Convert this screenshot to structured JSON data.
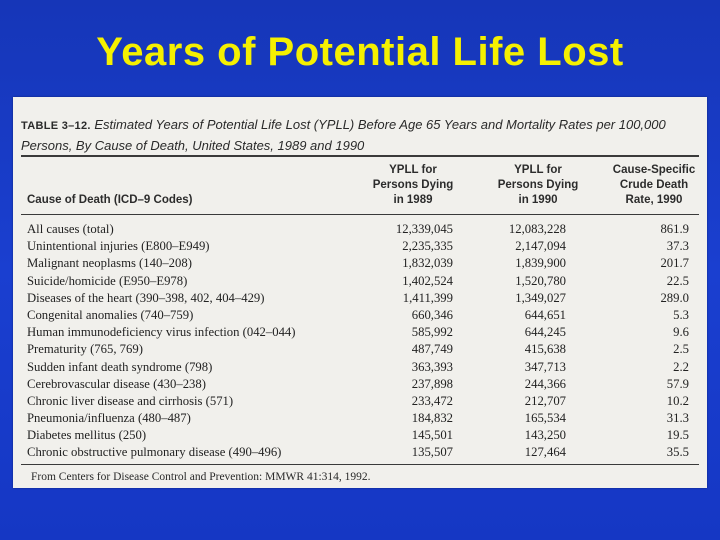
{
  "slide": {
    "title": "Years of Potential Life Lost"
  },
  "table": {
    "label": "TABLE 3–12.",
    "caption_line1": "Estimated Years of Potential Life Lost (YPLL) Before Age 65 Years and Mortality Rates per 100,000",
    "caption_line2": "Persons, By Cause of Death, United States, 1989 and 1990",
    "headers": {
      "cause": "Cause of Death (ICD–9 Codes)",
      "ypll1989": [
        "YPLL for",
        "Persons Dying",
        "in 1989"
      ],
      "ypll1990": [
        "YPLL for",
        "Persons Dying",
        "in 1990"
      ],
      "rate": [
        "Cause-Specific",
        "Crude Death",
        "Rate, 1990"
      ]
    },
    "rows": [
      {
        "cause": "All causes (total)",
        "ypll1989": "12,339,045",
        "ypll1990": "12,083,228",
        "rate": "861.9"
      },
      {
        "cause": "Unintentional injuries (E800–E949)",
        "ypll1989": "2,235,335",
        "ypll1990": "2,147,094",
        "rate": "37.3"
      },
      {
        "cause": "Malignant neoplasms (140–208)",
        "ypll1989": "1,832,039",
        "ypll1990": "1,839,900",
        "rate": "201.7"
      },
      {
        "cause": "Suicide/homicide (E950–E978)",
        "ypll1989": "1,402,524",
        "ypll1990": "1,520,780",
        "rate": "22.5"
      },
      {
        "cause": "Diseases of the heart (390–398, 402, 404–429)",
        "ypll1989": "1,411,399",
        "ypll1990": "1,349,027",
        "rate": "289.0"
      },
      {
        "cause": "Congenital anomalies (740–759)",
        "ypll1989": "660,346",
        "ypll1990": "644,651",
        "rate": "5.3"
      },
      {
        "cause": "Human immunodeficiency virus infection (042–044)",
        "ypll1989": "585,992",
        "ypll1990": "644,245",
        "rate": "9.6"
      },
      {
        "cause": "Prematurity (765, 769)",
        "ypll1989": "487,749",
        "ypll1990": "415,638",
        "rate": "2.5"
      },
      {
        "cause": "Sudden infant death syndrome (798)",
        "ypll1989": "363,393",
        "ypll1990": "347,713",
        "rate": "2.2"
      },
      {
        "cause": "Cerebrovascular disease (430–238)",
        "ypll1989": "237,898",
        "ypll1990": "244,366",
        "rate": "57.9"
      },
      {
        "cause": "Chronic liver disease and cirrhosis (571)",
        "ypll1989": "233,472",
        "ypll1990": "212,707",
        "rate": "10.2"
      },
      {
        "cause": "Pneumonia/influenza (480–487)",
        "ypll1989": "184,832",
        "ypll1990": "165,534",
        "rate": "31.3"
      },
      {
        "cause": "Diabetes mellitus (250)",
        "ypll1989": "145,501",
        "ypll1990": "143,250",
        "rate": "19.5"
      },
      {
        "cause": "Chronic obstructive pulmonary disease (490–496)",
        "ypll1989": "135,507",
        "ypll1990": "127,464",
        "rate": "35.5"
      }
    ],
    "footnote": "From Centers for Disease Control and Prevention: MMWR 41:314, 1992."
  }
}
